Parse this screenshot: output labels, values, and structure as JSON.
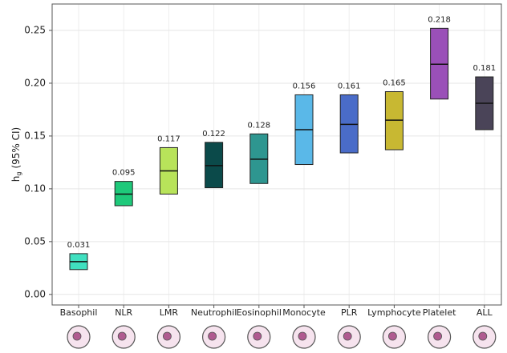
{
  "chart_data": {
    "type": "range_bar",
    "ylabel": {
      "main": "h",
      "sub": "g",
      "rest": "(95% CI)"
    },
    "categories": [
      "Basophil",
      "NLR",
      "LMR",
      "Neutrophil",
      "Eosinophil",
      "Monocyte",
      "PLR",
      "Lymphocyte",
      "Platelet",
      "ALL"
    ],
    "values": [
      0.031,
      0.095,
      0.117,
      0.122,
      0.128,
      0.156,
      0.161,
      0.165,
      0.218,
      0.181
    ],
    "low": [
      0.0235,
      0.084,
      0.095,
      0.101,
      0.105,
      0.123,
      0.134,
      0.137,
      0.185,
      0.156
    ],
    "high": [
      0.0386,
      0.107,
      0.139,
      0.144,
      0.152,
      0.189,
      0.189,
      0.192,
      0.252,
      0.206
    ],
    "colors": [
      "#40e0c0",
      "#1ec97a",
      "#b8e35a",
      "#0b4a4a",
      "#2e9690",
      "#5ab8e8",
      "#4a6cc8",
      "#c8b832",
      "#9a50b8",
      "#4a4458"
    ],
    "ylim": [
      -0.01,
      0.275
    ],
    "yticks": [
      {
        "value": 0,
        "label": "0.00"
      },
      {
        "value": 0.05,
        "label": "0.05"
      },
      {
        "value": 0.1,
        "label": "0.10"
      },
      {
        "value": 0.15,
        "label": "0.15"
      },
      {
        "value": 0.2,
        "label": "0.20"
      },
      {
        "value": 0.25,
        "label": "0.25"
      }
    ],
    "grid": true
  }
}
